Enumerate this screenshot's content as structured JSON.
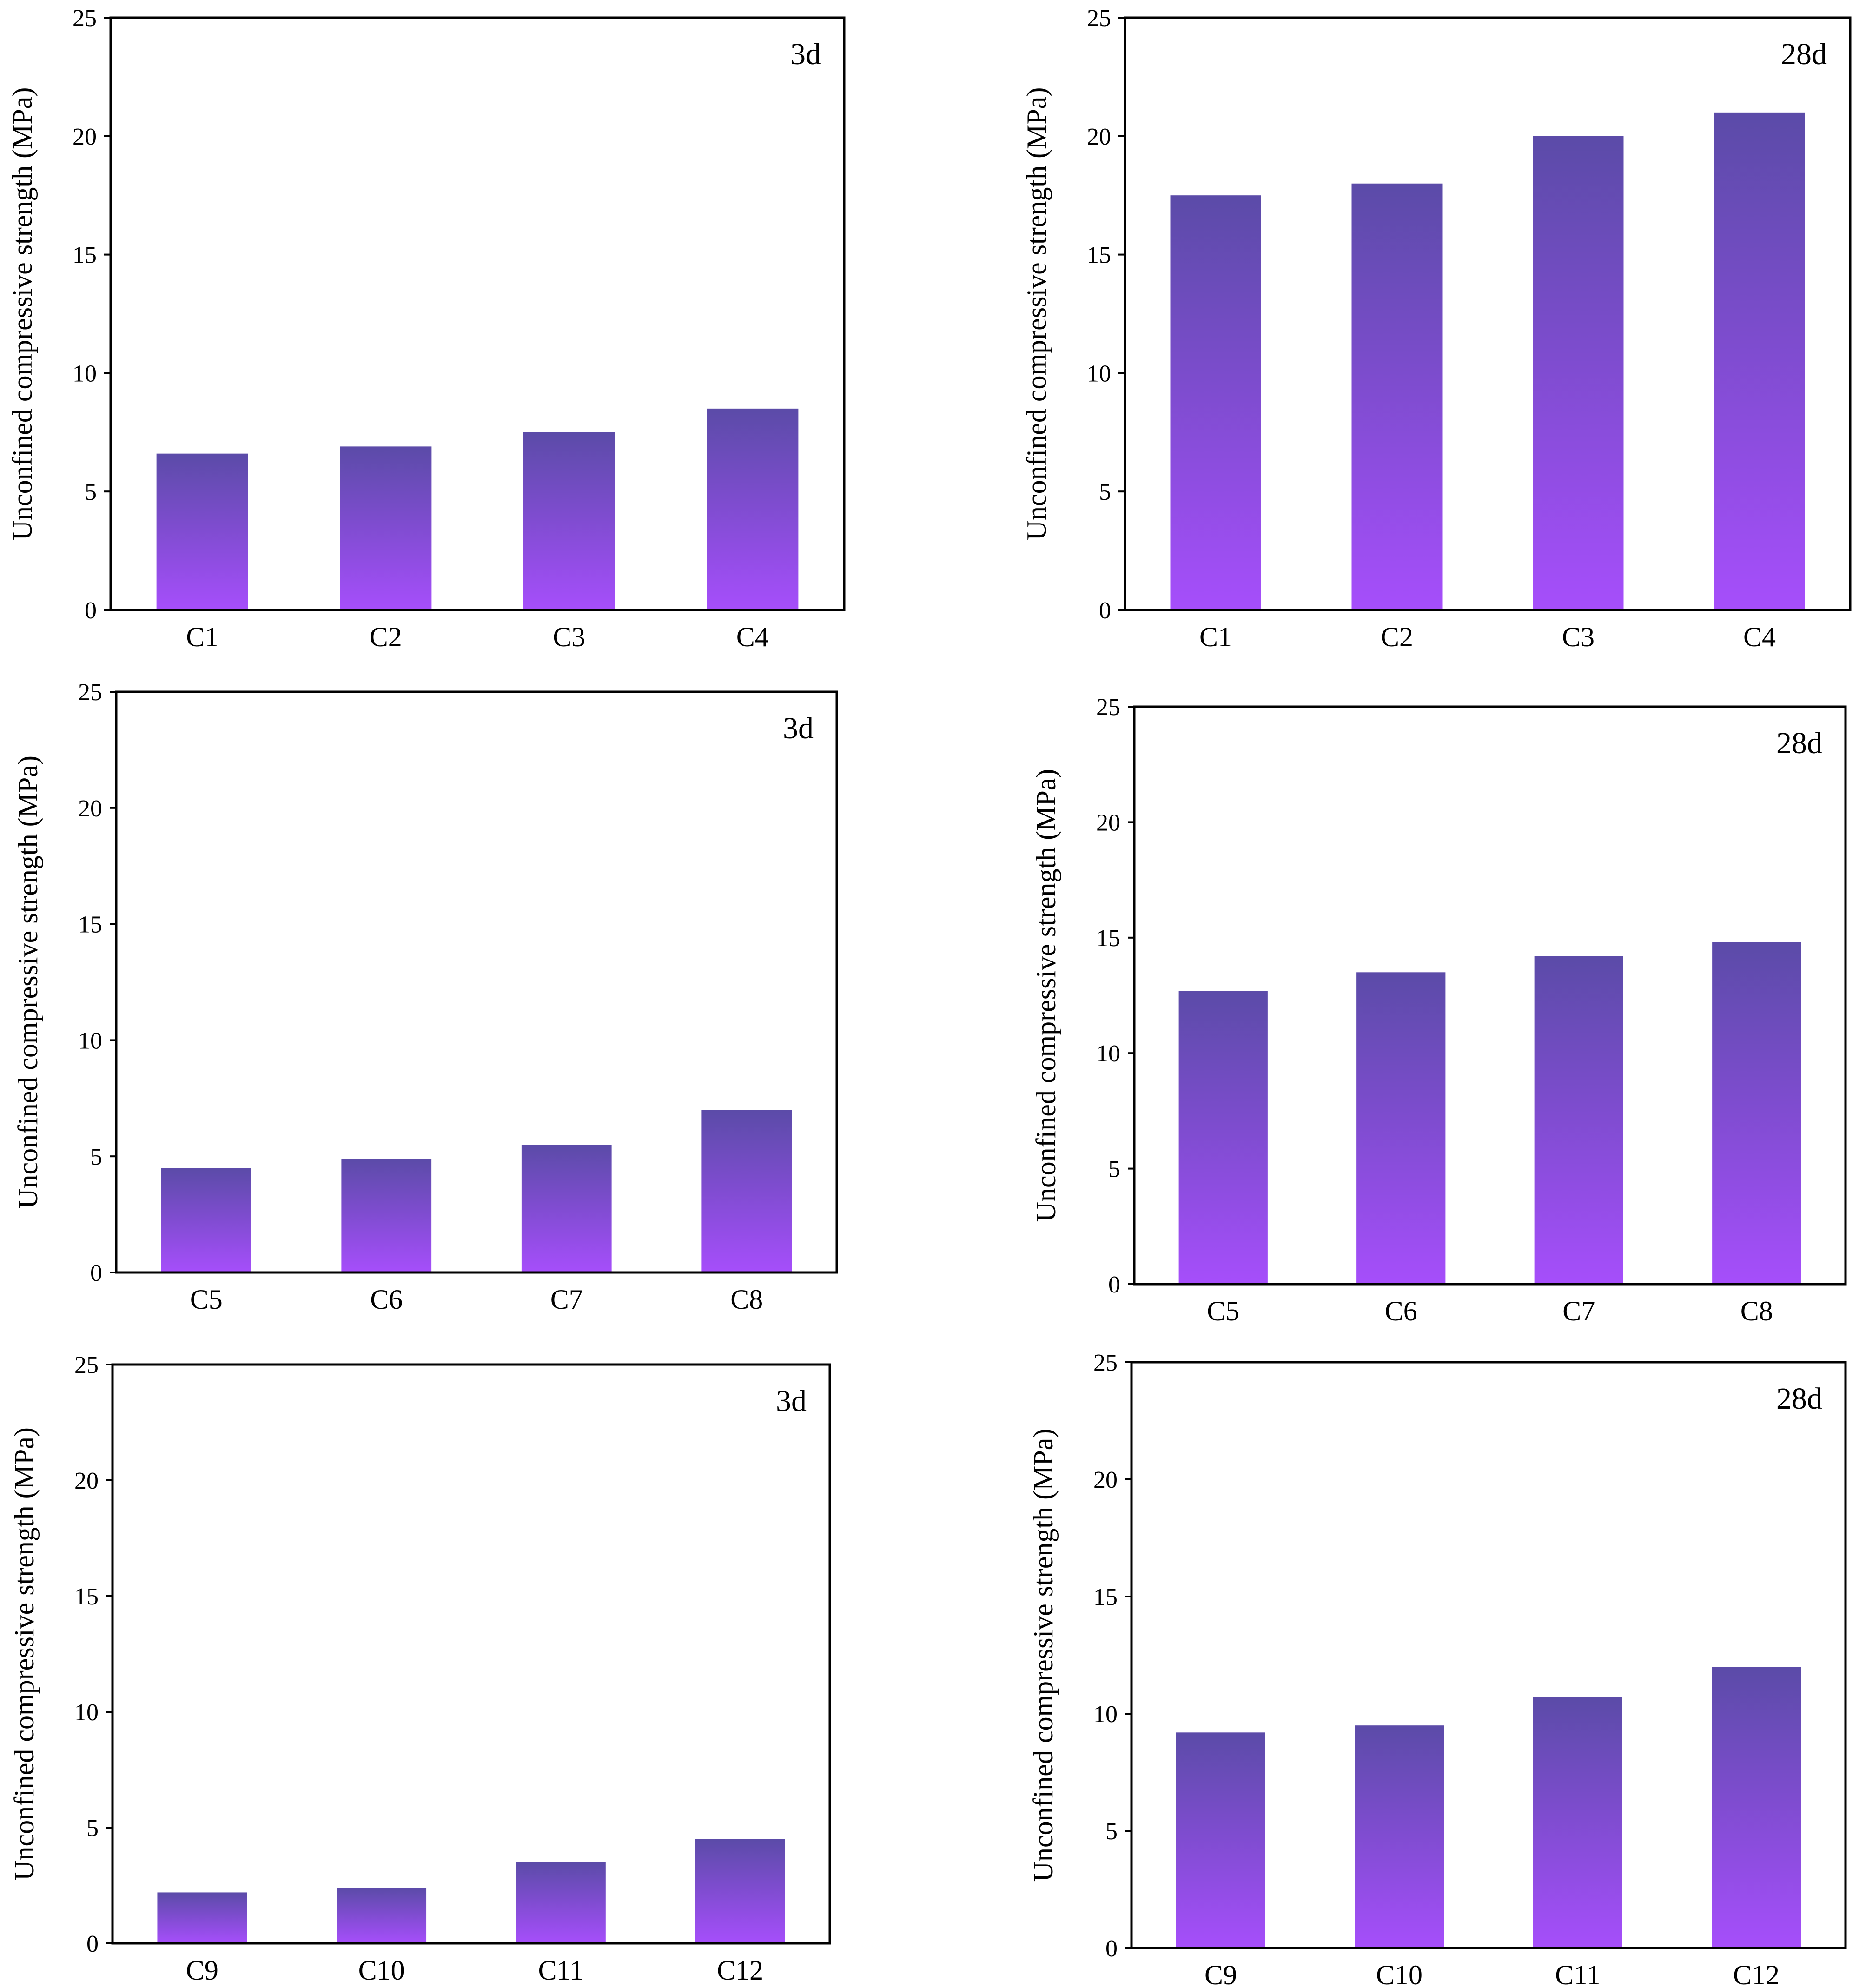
{
  "chart_data": [
    {
      "type": "bar",
      "panel_label": "3d",
      "categories": [
        "C1",
        "C2",
        "C3",
        "C4"
      ],
      "values": [
        6.6,
        6.9,
        7.5,
        8.5
      ],
      "ylabel": "Unconfined compressive strength (MPa)",
      "xlabel": "",
      "ylim": [
        0,
        25
      ],
      "yticks": [
        "0",
        "5",
        "10",
        "15",
        "20",
        "25"
      ],
      "grid": false
    },
    {
      "type": "bar",
      "panel_label": "28d",
      "categories": [
        "C1",
        "C2",
        "C3",
        "C4"
      ],
      "values": [
        17.5,
        18.0,
        20.0,
        21.0
      ],
      "ylabel": "Unconfined compressive strength (MPa)",
      "xlabel": "",
      "ylim": [
        0,
        25
      ],
      "yticks": [
        "0",
        "5",
        "10",
        "15",
        "20",
        "25"
      ],
      "grid": false
    },
    {
      "type": "bar",
      "panel_label": "3d",
      "categories": [
        "C5",
        "C6",
        "C7",
        "C8"
      ],
      "values": [
        4.5,
        4.9,
        5.5,
        7.0
      ],
      "ylabel": "Unconfined compressive strength (MPa)",
      "xlabel": "",
      "ylim": [
        0,
        25
      ],
      "yticks": [
        "0",
        "5",
        "10",
        "15",
        "20",
        "25"
      ],
      "grid": false
    },
    {
      "type": "bar",
      "panel_label": "28d",
      "categories": [
        "C5",
        "C6",
        "C7",
        "C8"
      ],
      "values": [
        12.7,
        13.5,
        14.2,
        14.8
      ],
      "ylabel": "Unconfined compressive strength (MPa)",
      "xlabel": "",
      "ylim": [
        0,
        25
      ],
      "yticks": [
        "0",
        "5",
        "10",
        "15",
        "20",
        "25"
      ],
      "grid": false
    },
    {
      "type": "bar",
      "panel_label": "3d",
      "categories": [
        "C9",
        "C10",
        "C11",
        "C12"
      ],
      "values": [
        2.2,
        2.4,
        3.5,
        4.5
      ],
      "ylabel": "Unconfined compressive strength (MPa)",
      "xlabel": "",
      "ylim": [
        0,
        25
      ],
      "yticks": [
        "0",
        "5",
        "10",
        "15",
        "20",
        "25"
      ],
      "grid": false
    },
    {
      "type": "bar",
      "panel_label": "28d",
      "categories": [
        "C9",
        "C10",
        "C11",
        "C12"
      ],
      "values": [
        9.2,
        9.5,
        10.7,
        12.0
      ],
      "ylabel": "Unconfined compressive strength (MPa)",
      "xlabel": "",
      "ylim": [
        0,
        25
      ],
      "yticks": [
        "0",
        "5",
        "10",
        "15",
        "20",
        "25"
      ],
      "grid": false
    }
  ],
  "colors": {
    "bar_top": "#5b4ba8",
    "bar_bottom": "#a64efb",
    "axis": "#000000"
  }
}
